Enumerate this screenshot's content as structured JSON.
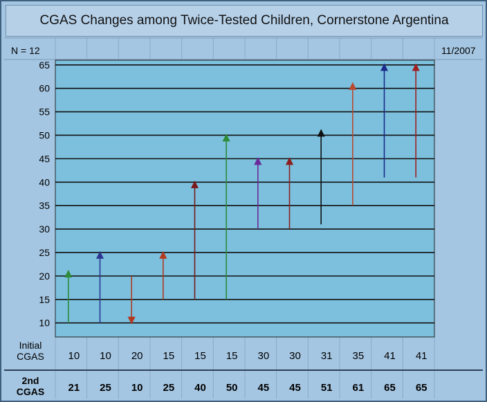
{
  "title": "CGAS Changes among Twice-Tested Children, Cornerstone Argentina",
  "n_label": "N = 12",
  "date_label": "11/2007",
  "row_labels": {
    "initial_line1": "Initial",
    "initial_line2": "CGAS",
    "second_line1": "2nd",
    "second_line2": "CGAS"
  },
  "colors": {
    "plot_bg": "#7cc0dd",
    "grid": "#111111",
    "panel_bg": "#a5c6e2"
  },
  "chart_data": {
    "type": "arrow",
    "title": "CGAS Changes among Twice-Tested Children, Cornerstone Argentina",
    "ylim": [
      7,
      66
    ],
    "yticks": [
      10,
      15,
      20,
      25,
      30,
      35,
      40,
      45,
      50,
      55,
      60,
      65
    ],
    "grid": true,
    "initial": [
      10,
      10,
      20,
      15,
      15,
      15,
      30,
      30,
      31,
      35,
      41,
      41
    ],
    "second": [
      21,
      25,
      10,
      25,
      40,
      50,
      45,
      45,
      51,
      61,
      65,
      65
    ],
    "arrow_colors": [
      "#2e8b3a",
      "#2c3590",
      "#b23a20",
      "#b23a20",
      "#7a1a1a",
      "#2e8b3a",
      "#6a2a9a",
      "#8a2020",
      "#111111",
      "#b84a30",
      "#1c2a8a",
      "#a02020"
    ]
  }
}
